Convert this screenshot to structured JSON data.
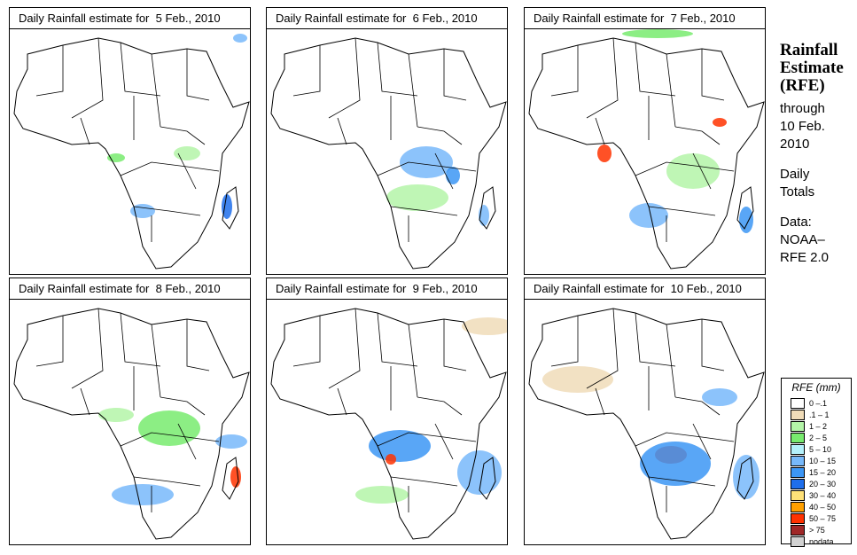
{
  "panels": [
    {
      "title": "Daily Rainfall estimate for  5 Feb., 2010"
    },
    {
      "title": "Daily Rainfall estimate for  6 Feb., 2010"
    },
    {
      "title": "Daily Rainfall estimate for  7 Feb., 2010"
    },
    {
      "title": "Daily Rainfall estimate for  8 Feb., 2010"
    },
    {
      "title": "Daily Rainfall estimate for  9 Feb., 2010"
    },
    {
      "title": "Daily Rainfall estimate for  10 Feb., 2010"
    }
  ],
  "side": {
    "title1": "Rainfall",
    "title2": "Estimate",
    "title3": "(RFE)",
    "through": "through",
    "date1": "10 Feb.",
    "date2": "2010",
    "daily": "Daily",
    "totals": "Totals",
    "data": "Data:",
    "src1": "NOAA–",
    "src2": "RFE 2.0"
  },
  "legend": {
    "title": "RFE (mm)",
    "items": [
      {
        "label": "0 –.1",
        "color": "#ffffff"
      },
      {
        "label": ".1 – 1",
        "color": "#f0dcb8"
      },
      {
        "label": "1 – 2",
        "color": "#b4f5a8"
      },
      {
        "label": "2 – 5",
        "color": "#78eb6e"
      },
      {
        "label": "5 – 10",
        "color": "#b4f0fa"
      },
      {
        "label": "10 – 15",
        "color": "#78b9fa"
      },
      {
        "label": "15 – 20",
        "color": "#3c96f5"
      },
      {
        "label": "20 – 30",
        "color": "#1e6eeb"
      },
      {
        "label": "30 – 40",
        "color": "#ffe178"
      },
      {
        "label": "40 – 50",
        "color": "#ffa000"
      },
      {
        "label": "50 – 75",
        "color": "#ff3200"
      },
      {
        "label": "> 75",
        "color": "#a02828"
      },
      {
        "label": "nodata",
        "color": "#d2d2d2"
      }
    ]
  }
}
